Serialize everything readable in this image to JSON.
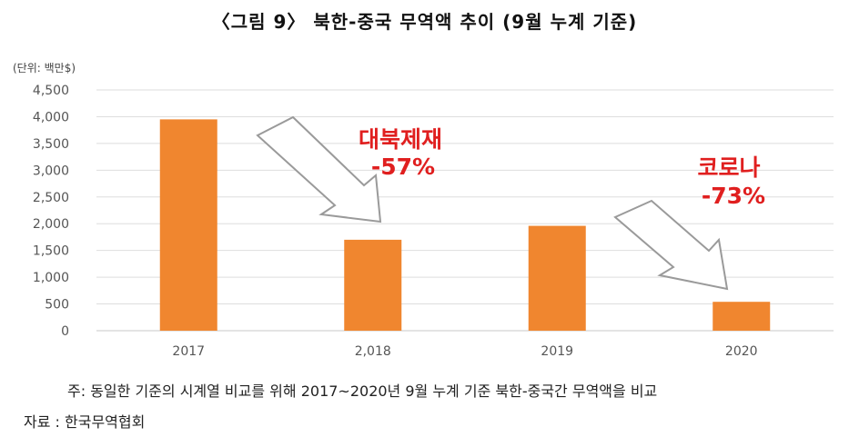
{
  "title": "〈그림 9〉 북한-중국 무역액 추이 (9월 누계 기준)",
  "unit_label": "(단위: 백만$)",
  "chart_data": {
    "type": "bar",
    "categories": [
      "2017",
      "2,018",
      "2019",
      "2020"
    ],
    "values": [
      3950,
      1700,
      1960,
      540
    ],
    "y_ticks": [
      "0",
      "500",
      "1,000",
      "1,500",
      "2,000",
      "2,500",
      "3,000",
      "3,500",
      "4,000",
      "4,500"
    ],
    "ylim": [
      0,
      4500
    ],
    "grid": true,
    "bar_color": "#f0862f",
    "annotations": [
      {
        "line1": "대북제재",
        "line2": "-57%",
        "color": "#e01f1f"
      },
      {
        "line1": "코로나",
        "line2": "-73%",
        "color": "#e01f1f"
      }
    ]
  },
  "footnote": "주: 동일한 기준의 시계열 비교를 위해 2017~2020년 9월 누계 기준 북한-중국간 무역액을 비교",
  "source": "자료 : 한국무역협회"
}
